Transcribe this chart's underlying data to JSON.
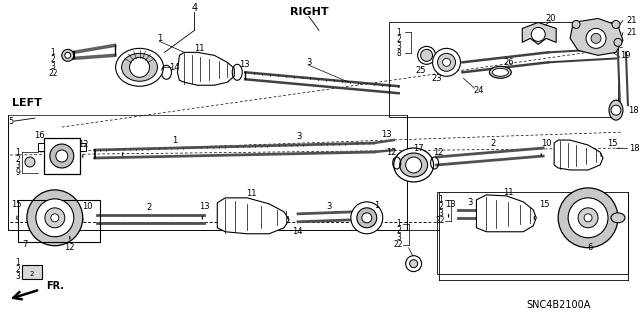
{
  "bg_color": "#ffffff",
  "diagram_id": "SNC4B2100A",
  "label_RIGHT": "RIGHT",
  "label_LEFT": "LEFT",
  "label_FR": "FR.",
  "fig_width": 6.4,
  "fig_height": 3.19,
  "dpi": 100
}
